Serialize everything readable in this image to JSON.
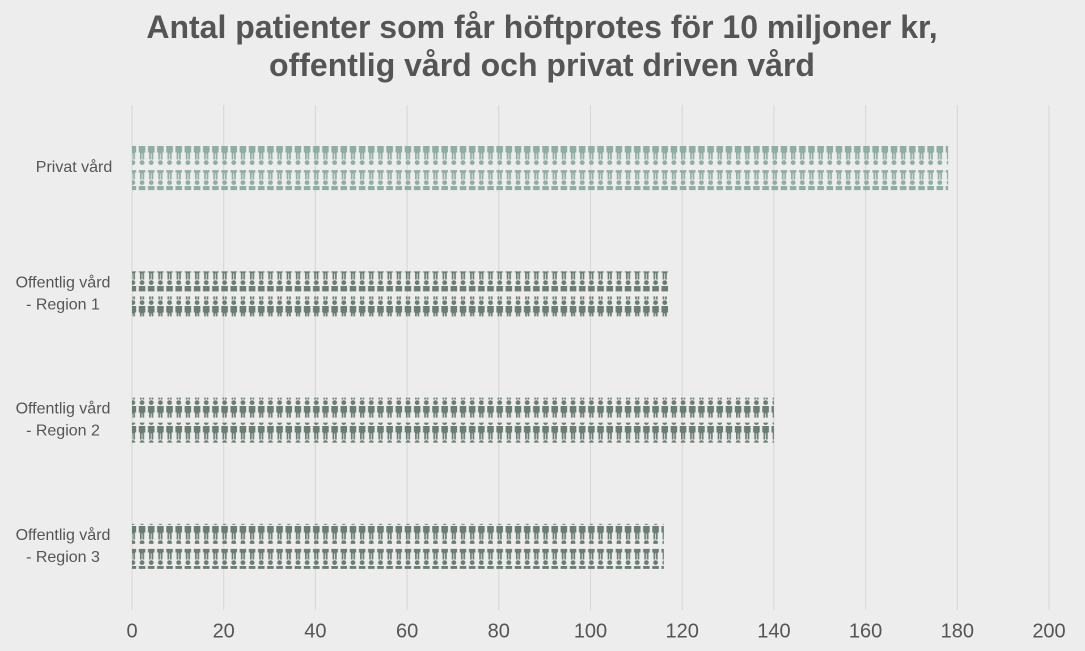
{
  "chart_data": {
    "type": "pictograph",
    "title": "Antal patienter som får höftprotes för 10 miljoner kr,\noffentlig vård och privat driven vård",
    "categories": [
      "Privat vård",
      "Offentlig vård\n- Region 1",
      "Offentlig vård\n- Region 2",
      "Offentlig vård\n- Region 3"
    ],
    "values": [
      178,
      117,
      140,
      116
    ],
    "colors": [
      "#8fada3",
      "#6b7d73",
      "#6b7d73",
      "#6b7d73"
    ],
    "xlim": [
      0,
      200
    ],
    "xticks": [
      0,
      20,
      40,
      60,
      80,
      100,
      120,
      140,
      160,
      180,
      200
    ],
    "grid": true
  }
}
